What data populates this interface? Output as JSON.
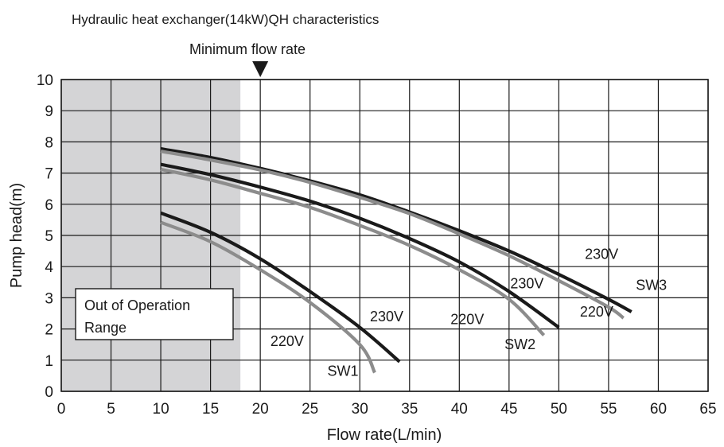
{
  "chart_data": {
    "type": "line",
    "title": "Hydraulic heat exchanger(14kW)QH characteristics",
    "xlabel": "Flow rate(L/min)",
    "ylabel": "Pump head(m)",
    "xlim": [
      0,
      65
    ],
    "ylim": [
      0,
      10
    ],
    "x_ticks": [
      "0",
      "5",
      "10",
      "15",
      "20",
      "25",
      "30",
      "35",
      "40",
      "45",
      "50",
      "55",
      "60",
      "65"
    ],
    "y_ticks": [
      "0",
      "1",
      "2",
      "3",
      "4",
      "5",
      "6",
      "7",
      "8",
      "9",
      "10"
    ],
    "grid": true,
    "shaded_region": {
      "x_from": 0,
      "x_to": 18,
      "label_lines": [
        "Out of Operation",
        "Range"
      ],
      "color": "#d4d4d6"
    },
    "minimum_flow_marker": {
      "x": 20,
      "label": "Minimum flow rate"
    },
    "series": [
      {
        "name": "230V",
        "group": "SW1",
        "color": "#1a1a1a",
        "points": [
          [
            10,
            5.72
          ],
          [
            15,
            5.1
          ],
          [
            20,
            4.25
          ],
          [
            25,
            3.2
          ],
          [
            30,
            2.05
          ],
          [
            34,
            0.95
          ]
        ]
      },
      {
        "name": "220V",
        "group": "SW1",
        "color": "#8c8c8c",
        "points": [
          [
            10,
            5.42
          ],
          [
            15,
            4.8
          ],
          [
            20,
            3.9
          ],
          [
            25,
            2.85
          ],
          [
            30,
            1.5
          ],
          [
            31.5,
            0.6
          ]
        ]
      },
      {
        "name": "230V",
        "group": "SW2",
        "color": "#1a1a1a",
        "points": [
          [
            10,
            7.28
          ],
          [
            15,
            6.95
          ],
          [
            20,
            6.55
          ],
          [
            25,
            6.1
          ],
          [
            30,
            5.55
          ],
          [
            35,
            4.9
          ],
          [
            40,
            4.15
          ],
          [
            45,
            3.2
          ],
          [
            50,
            2.05
          ]
        ]
      },
      {
        "name": "220V",
        "group": "SW2",
        "color": "#8c8c8c",
        "points": [
          [
            10,
            7.12
          ],
          [
            15,
            6.78
          ],
          [
            20,
            6.35
          ],
          [
            25,
            5.9
          ],
          [
            30,
            5.32
          ],
          [
            35,
            4.68
          ],
          [
            40,
            3.9
          ],
          [
            45,
            2.95
          ],
          [
            48.5,
            1.8
          ]
        ]
      },
      {
        "name": "230V",
        "group": "SW3",
        "color": "#1a1a1a",
        "points": [
          [
            10,
            7.78
          ],
          [
            15,
            7.5
          ],
          [
            20,
            7.15
          ],
          [
            25,
            6.75
          ],
          [
            30,
            6.3
          ],
          [
            35,
            5.75
          ],
          [
            40,
            5.15
          ],
          [
            45,
            4.5
          ],
          [
            50,
            3.75
          ],
          [
            55,
            2.95
          ],
          [
            57.3,
            2.55
          ]
        ]
      },
      {
        "name": "220V",
        "group": "SW3",
        "color": "#8c8c8c",
        "points": [
          [
            10,
            7.7
          ],
          [
            15,
            7.42
          ],
          [
            20,
            7.1
          ],
          [
            25,
            6.7
          ],
          [
            30,
            6.22
          ],
          [
            35,
            5.7
          ],
          [
            40,
            5.05
          ],
          [
            45,
            4.35
          ],
          [
            50,
            3.55
          ],
          [
            55,
            2.7
          ],
          [
            56.5,
            2.35
          ]
        ]
      }
    ],
    "curve_labels": [
      {
        "text": "230V",
        "x": 32.7,
        "y": 2.25
      },
      {
        "text": "220V",
        "x": 22.7,
        "y": 1.45
      },
      {
        "text": "SW1",
        "x": 28.3,
        "y": 0.5
      },
      {
        "text": "230V",
        "x": 46.8,
        "y": 3.3
      },
      {
        "text": "220V",
        "x": 40.8,
        "y": 2.15
      },
      {
        "text": "SW2",
        "x": 46.1,
        "y": 1.35
      },
      {
        "text": "230V",
        "x": 54.3,
        "y": 4.25
      },
      {
        "text": "220V",
        "x": 53.8,
        "y": 2.4
      },
      {
        "text": "SW3",
        "x": 59.3,
        "y": 3.25
      }
    ]
  }
}
